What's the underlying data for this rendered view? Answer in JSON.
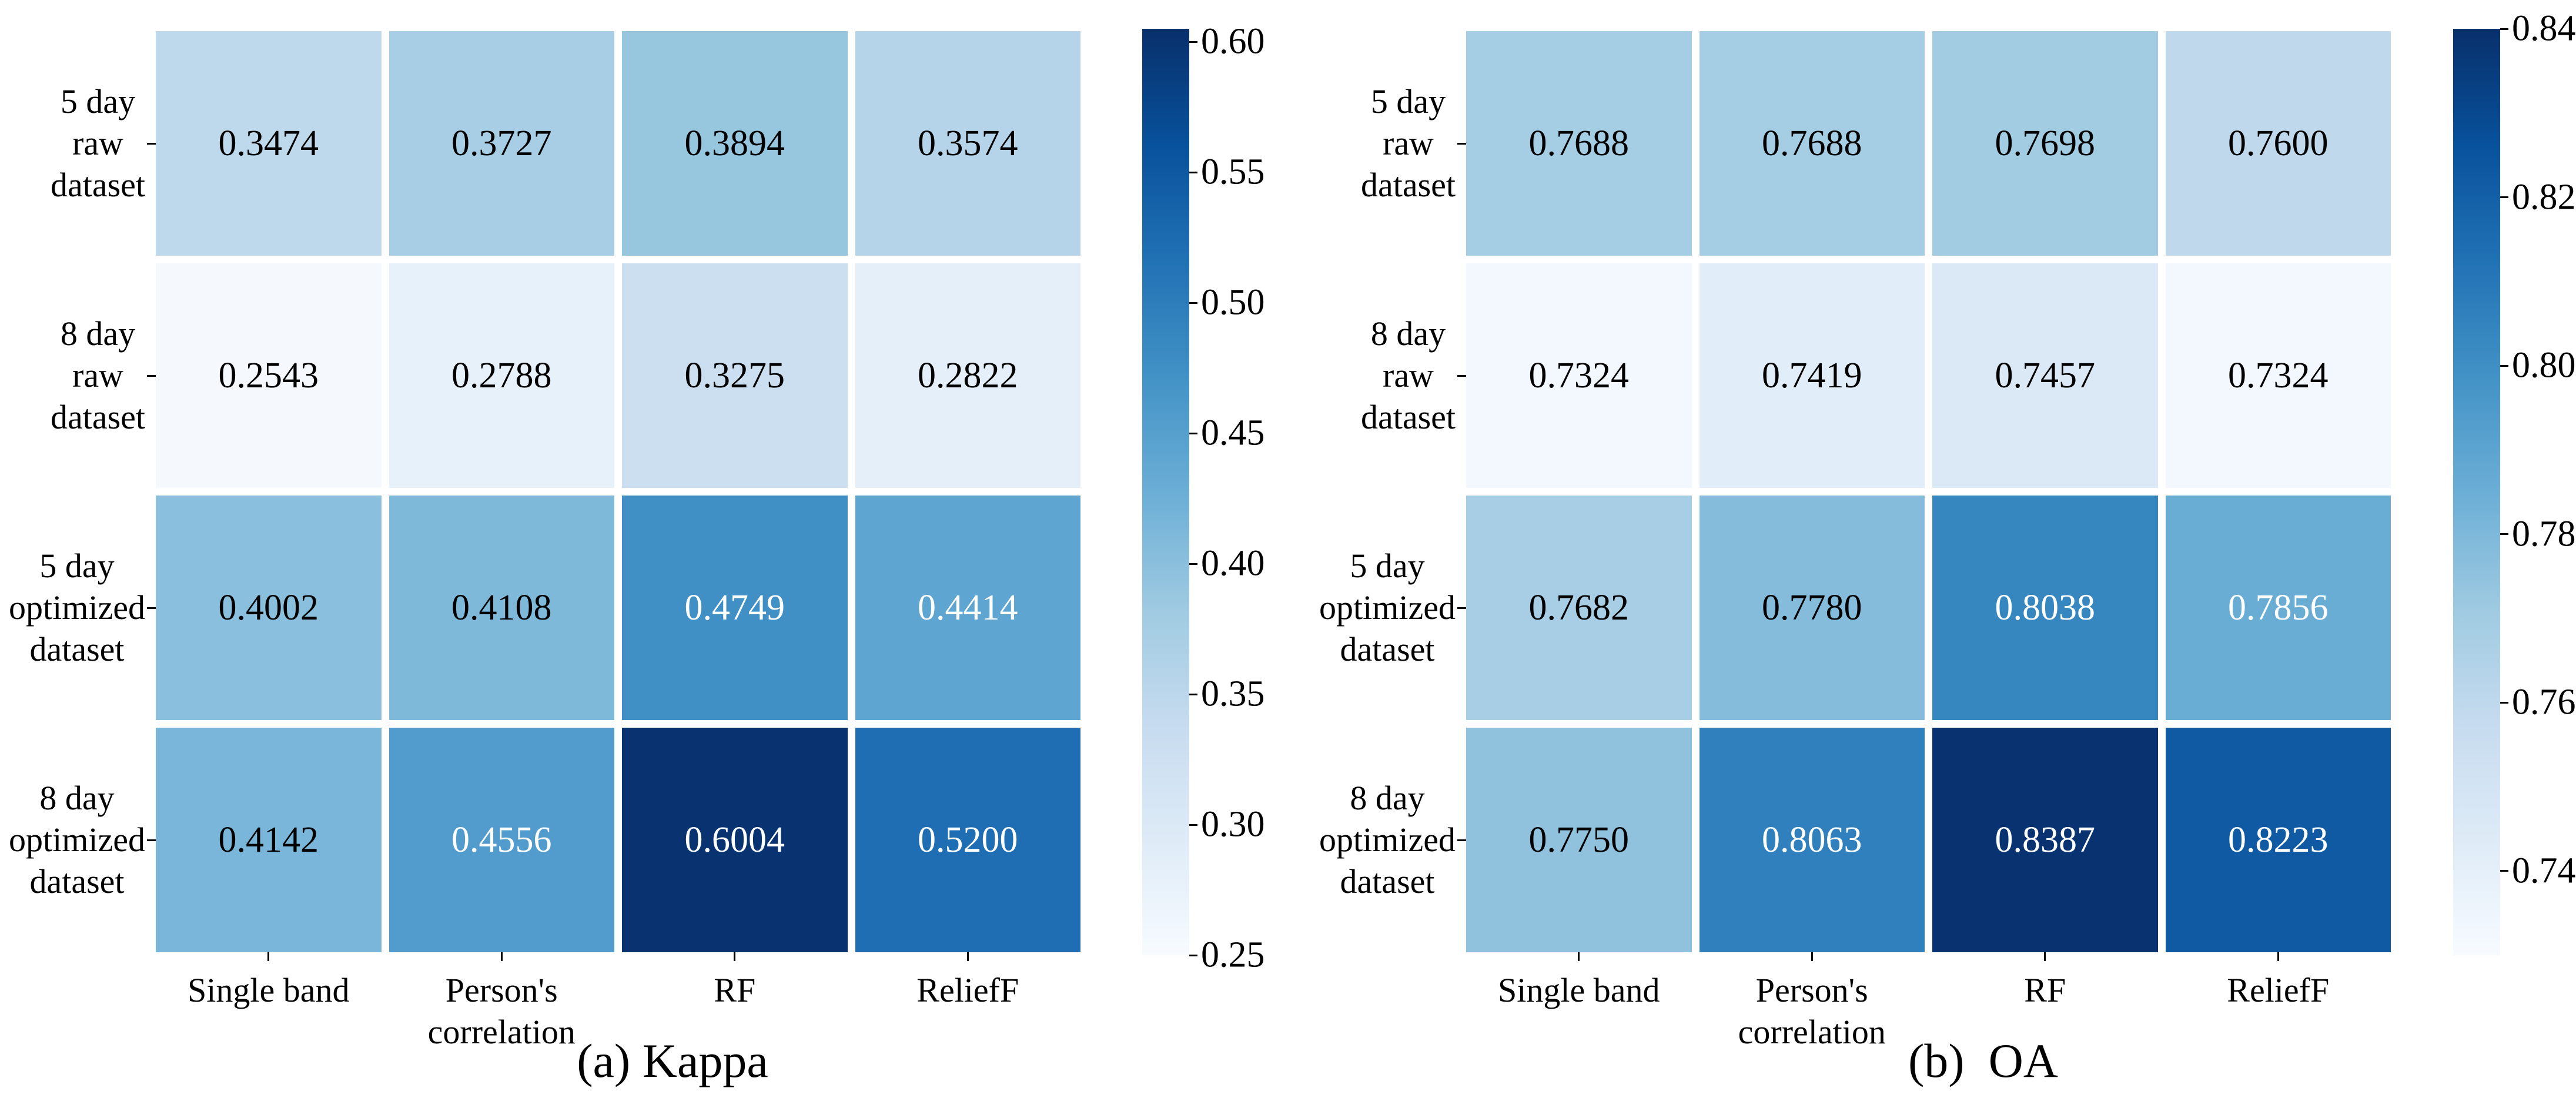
{
  "figure": {
    "background": "#ffffff",
    "text_color": "#000000",
    "annotation_light_text": "#ffffff"
  },
  "colormap": {
    "name": "Blues",
    "stops": [
      "#f7fbff",
      "#deebf7",
      "#c6dbef",
      "#9ecae1",
      "#6baed6",
      "#4292c6",
      "#2171b5",
      "#08519c",
      "#08306b"
    ]
  },
  "chart_data": [
    {
      "type": "heatmap",
      "caption": "(a) Kappa",
      "row_labels": [
        [
          "5 day",
          "raw",
          "dataset"
        ],
        [
          "8 day",
          "raw",
          "dataset"
        ],
        [
          "5 day",
          "optimized",
          "dataset"
        ],
        [
          "8 day",
          "optimized",
          "dataset"
        ]
      ],
      "col_labels": [
        [
          "Single band"
        ],
        [
          "Person's",
          "correlation"
        ],
        [
          "RF"
        ],
        [
          "ReliefF"
        ]
      ],
      "values": [
        [
          "0.3474",
          "0.3727",
          "0.3894",
          "0.3574"
        ],
        [
          "0.2543",
          "0.2788",
          "0.3275",
          "0.2822"
        ],
        [
          "0.4002",
          "0.4108",
          "0.4749",
          "0.4414"
        ],
        [
          "0.4142",
          "0.4556",
          "0.6004",
          "0.5200"
        ]
      ],
      "colorbar": {
        "vmin": 0.25,
        "vmax": 0.605,
        "tick_labels": [
          "0.60",
          "0.55",
          "0.50",
          "0.45",
          "0.40",
          "0.35",
          "0.30",
          "0.25"
        ],
        "tick_values": [
          0.6,
          0.55,
          0.5,
          0.45,
          0.4,
          0.35,
          0.3,
          0.25
        ]
      }
    },
    {
      "type": "heatmap",
      "caption": "(b)  OA",
      "row_labels": [
        [
          "5 day",
          "raw",
          "dataset"
        ],
        [
          "8 day",
          "raw",
          "dataset"
        ],
        [
          "5 day",
          "optimized",
          "dataset"
        ],
        [
          "8 day",
          "optimized",
          "dataset"
        ]
      ],
      "col_labels": [
        [
          "Single band"
        ],
        [
          "Person's",
          "correlation"
        ],
        [
          "RF"
        ],
        [
          "ReliefF"
        ]
      ],
      "values": [
        [
          "0.7688",
          "0.7688",
          "0.7698",
          "0.7600"
        ],
        [
          "0.7324",
          "0.7419",
          "0.7457",
          "0.7324"
        ],
        [
          "0.7682",
          "0.7780",
          "0.8038",
          "0.7856"
        ],
        [
          "0.7750",
          "0.8063",
          "0.8387",
          "0.8223"
        ]
      ],
      "colorbar": {
        "vmin": 0.73,
        "vmax": 0.84,
        "tick_labels": [
          "0.84",
          "0.82",
          "0.80",
          "0.78",
          "0.76",
          "0.74"
        ],
        "tick_values": [
          0.84,
          0.82,
          0.8,
          0.78,
          0.76,
          0.74
        ]
      }
    }
  ]
}
